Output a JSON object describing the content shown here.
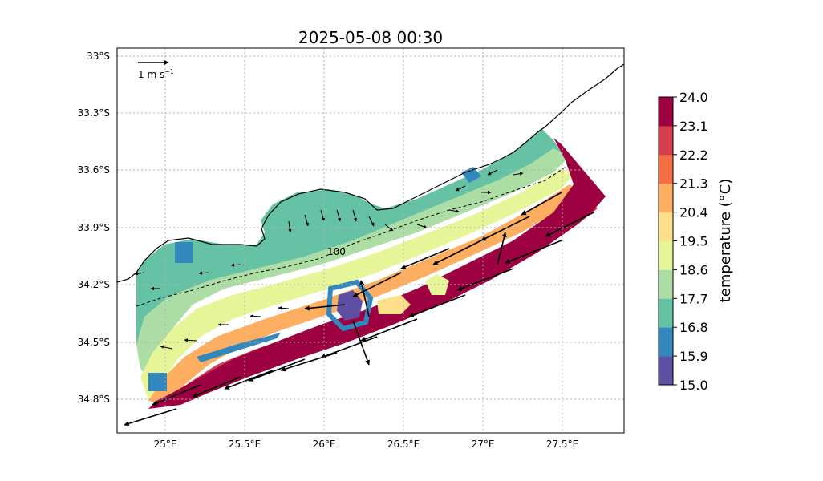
{
  "title": "2025-05-08 00:30",
  "map": {
    "lat_ticks": [
      "33°S",
      "33.3°S",
      "33.6°S",
      "33.9°S",
      "34.2°S",
      "34.5°S",
      "34.8°S"
    ],
    "lon_ticks": [
      "25°E",
      "25.5°E",
      "26°E",
      "26.5°E",
      "27°E",
      "27.5°E"
    ],
    "extent": {
      "lon": [
        24.7,
        27.85
      ],
      "lat": [
        -35.0,
        -32.96
      ]
    },
    "gridlines": true,
    "contour_label": "100",
    "field": "sea surface temperature",
    "arrows": "current velocity vectors"
  },
  "reference_arrow": {
    "label_main": "1 m s",
    "label_sup": "−1"
  },
  "colorbar": {
    "label": "temperature (°C)",
    "ticks": [
      "24.0",
      "23.1",
      "22.2",
      "21.3",
      "20.4",
      "19.5",
      "18.6",
      "17.7",
      "16.8",
      "15.9",
      "15.0"
    ],
    "bins": [
      "#5e4fa2",
      "#3288bd",
      "#66c2a5",
      "#abdda4",
      "#e6f598",
      "#fee08b",
      "#fdae61",
      "#f46d43",
      "#d53e4f",
      "#9e0142"
    ]
  }
}
